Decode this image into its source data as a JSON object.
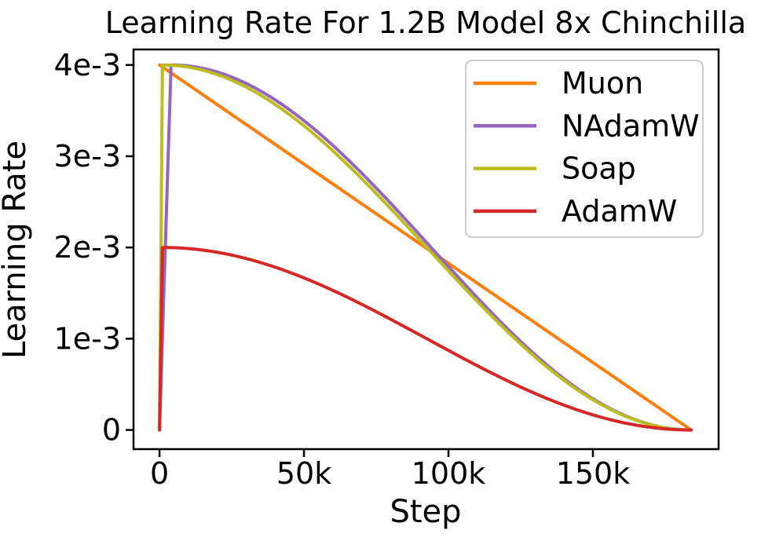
{
  "chart_data": {
    "type": "line",
    "title": "Learning Rate For 1.2B Model 8x Chinchilla",
    "xlabel": "Step",
    "ylabel": "Learning Rate",
    "grid": false,
    "legend_position": "upper right",
    "xlim": [
      -9000,
      193500
    ],
    "ylim": [
      -0.00021,
      0.00417
    ],
    "xticks": [
      {
        "value": 0,
        "label": "0"
      },
      {
        "value": 50000,
        "label": "50k"
      },
      {
        "value": 100000,
        "label": "100k"
      },
      {
        "value": 150000,
        "label": "150k"
      }
    ],
    "yticks": [
      {
        "value": 0,
        "label": "0"
      },
      {
        "value": 0.001,
        "label": "1e-3"
      },
      {
        "value": 0.002,
        "label": "2e-3"
      },
      {
        "value": 0.003,
        "label": "3e-3"
      },
      {
        "value": 0.004,
        "label": "4e-3"
      }
    ],
    "series": [
      {
        "name": "Muon",
        "color": "#ff7f0e",
        "schedule": "linear_decay",
        "peak_lr": 0.004,
        "warmup_steps": 0,
        "total_steps": 184000,
        "end_lr": 0
      },
      {
        "name": "NAdamW",
        "color": "#9467bd",
        "schedule": "cosine_decay",
        "peak_lr": 0.004,
        "warmup_steps": 4000,
        "total_steps": 184000,
        "end_lr": 0
      },
      {
        "name": "Soap",
        "color": "#bcbd22",
        "schedule": "cosine_decay",
        "peak_lr": 0.004,
        "warmup_steps": 1000,
        "total_steps": 184000,
        "end_lr": 0
      },
      {
        "name": "AdamW",
        "color": "#d62728",
        "schedule": "cosine_decay",
        "peak_lr": 0.002,
        "warmup_steps": 1000,
        "total_steps": 184000,
        "end_lr": 0
      }
    ]
  }
}
